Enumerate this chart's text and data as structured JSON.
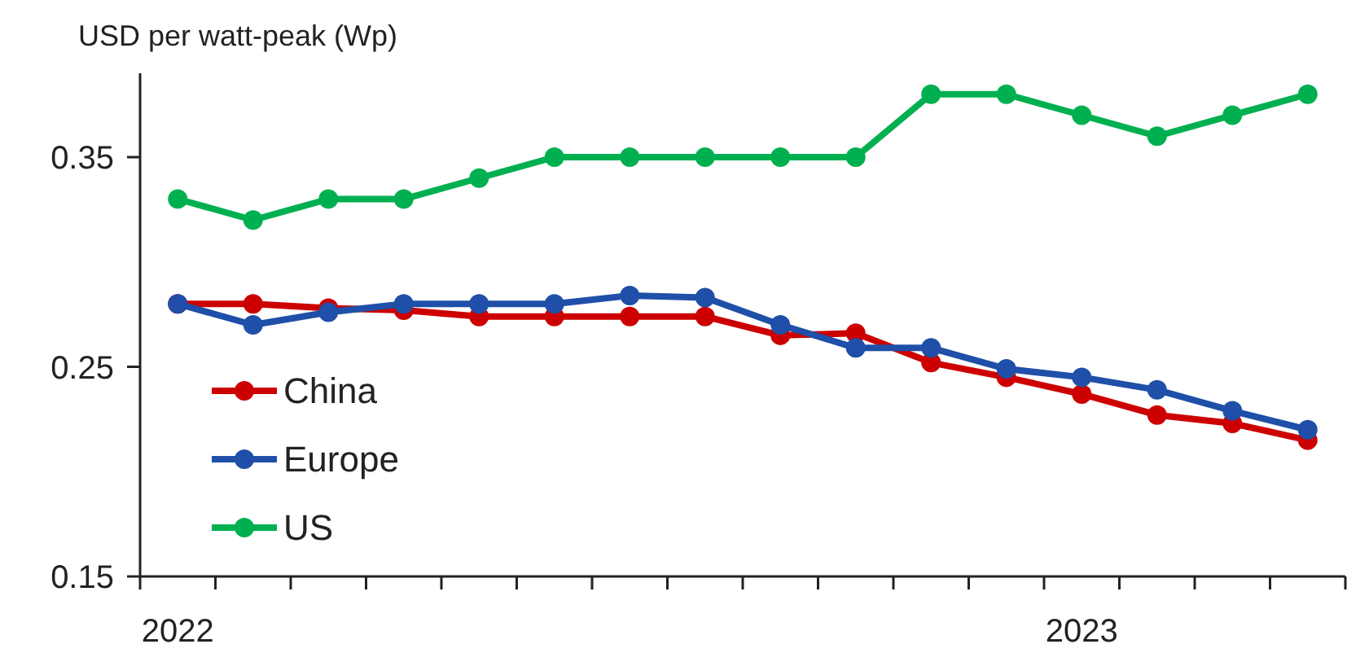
{
  "chart_data": {
    "type": "line",
    "ylabel": "USD per watt-peak (Wp)",
    "categories": [
      "2022",
      null,
      null,
      null,
      null,
      null,
      null,
      null,
      null,
      null,
      null,
      null,
      "2023",
      null,
      null,
      null
    ],
    "series": [
      {
        "name": "China",
        "color": "#cc0000",
        "values": [
          0.28,
          0.28,
          0.278,
          0.277,
          0.274,
          0.274,
          0.274,
          0.274,
          0.265,
          0.266,
          0.252,
          0.245,
          0.237,
          0.227,
          0.223,
          0.215
        ]
      },
      {
        "name": "Europe",
        "color": "#1f4fa8",
        "values": [
          0.28,
          0.27,
          0.276,
          0.28,
          0.28,
          0.28,
          0.284,
          0.283,
          0.27,
          0.259,
          0.259,
          0.249,
          0.245,
          0.239,
          0.229,
          0.22
        ]
      },
      {
        "name": "US",
        "color": "#00b050",
        "values": [
          0.33,
          0.32,
          0.33,
          0.33,
          0.34,
          0.35,
          0.35,
          0.35,
          0.35,
          0.35,
          0.38,
          0.38,
          0.37,
          0.36,
          0.37,
          0.38
        ]
      }
    ],
    "ylim": [
      0.15,
      0.39
    ],
    "yticks": [
      0.15,
      0.25,
      0.35
    ],
    "grid": false,
    "legend": "bottom left",
    "marker": "circle",
    "line_style": "solid"
  }
}
